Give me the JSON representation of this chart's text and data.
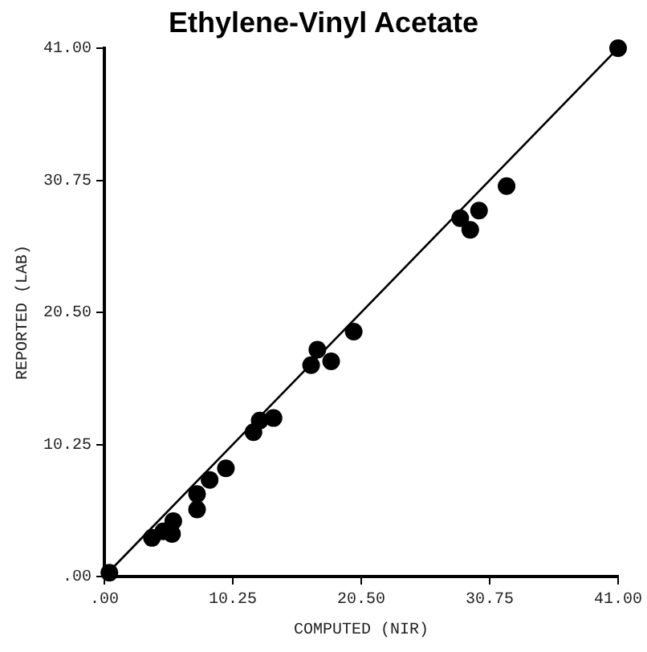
{
  "chart_data": {
    "type": "scatter",
    "title": "Ethylene-Vinyl Acetate",
    "xlabel": "COMPUTED (NIR)",
    "ylabel": "REPORTED (LAB)",
    "xlim": [
      0,
      41
    ],
    "ylim": [
      0,
      41
    ],
    "xticks": [
      {
        "value": 0,
        "label": ".00"
      },
      {
        "value": 10.25,
        "label": "10.25"
      },
      {
        "value": 20.5,
        "label": "20.50"
      },
      {
        "value": 30.75,
        "label": "30.75"
      },
      {
        "value": 41,
        "label": "41.00"
      }
    ],
    "yticks": [
      {
        "value": 0,
        "label": ".00"
      },
      {
        "value": 10.25,
        "label": "10.25"
      },
      {
        "value": 20.5,
        "label": "20.50"
      },
      {
        "value": 30.75,
        "label": "30.75"
      },
      {
        "value": 41,
        "label": "41.00"
      }
    ],
    "grid": false,
    "legend": false,
    "series": [
      {
        "type": "scatter",
        "color": "#000000",
        "marker": "circle",
        "x": [
          0.4,
          3.8,
          4.7,
          5.4,
          5.5,
          7.4,
          7.4,
          8.4,
          9.7,
          11.9,
          12.4,
          13.5,
          16.5,
          17.0,
          18.1,
          19.9,
          28.4,
          29.2,
          29.9,
          32.1,
          41.0
        ],
        "values": [
          0.3,
          3.0,
          3.5,
          3.3,
          4.3,
          5.2,
          6.4,
          7.5,
          8.4,
          11.2,
          12.1,
          12.3,
          16.4,
          17.6,
          16.7,
          19.0,
          27.8,
          26.9,
          28.4,
          30.3,
          41.0
        ]
      },
      {
        "type": "line",
        "color": "#000000",
        "x": [
          0,
          41
        ],
        "values": [
          0,
          41
        ],
        "marker": "none",
        "line_style": "solid"
      }
    ]
  }
}
